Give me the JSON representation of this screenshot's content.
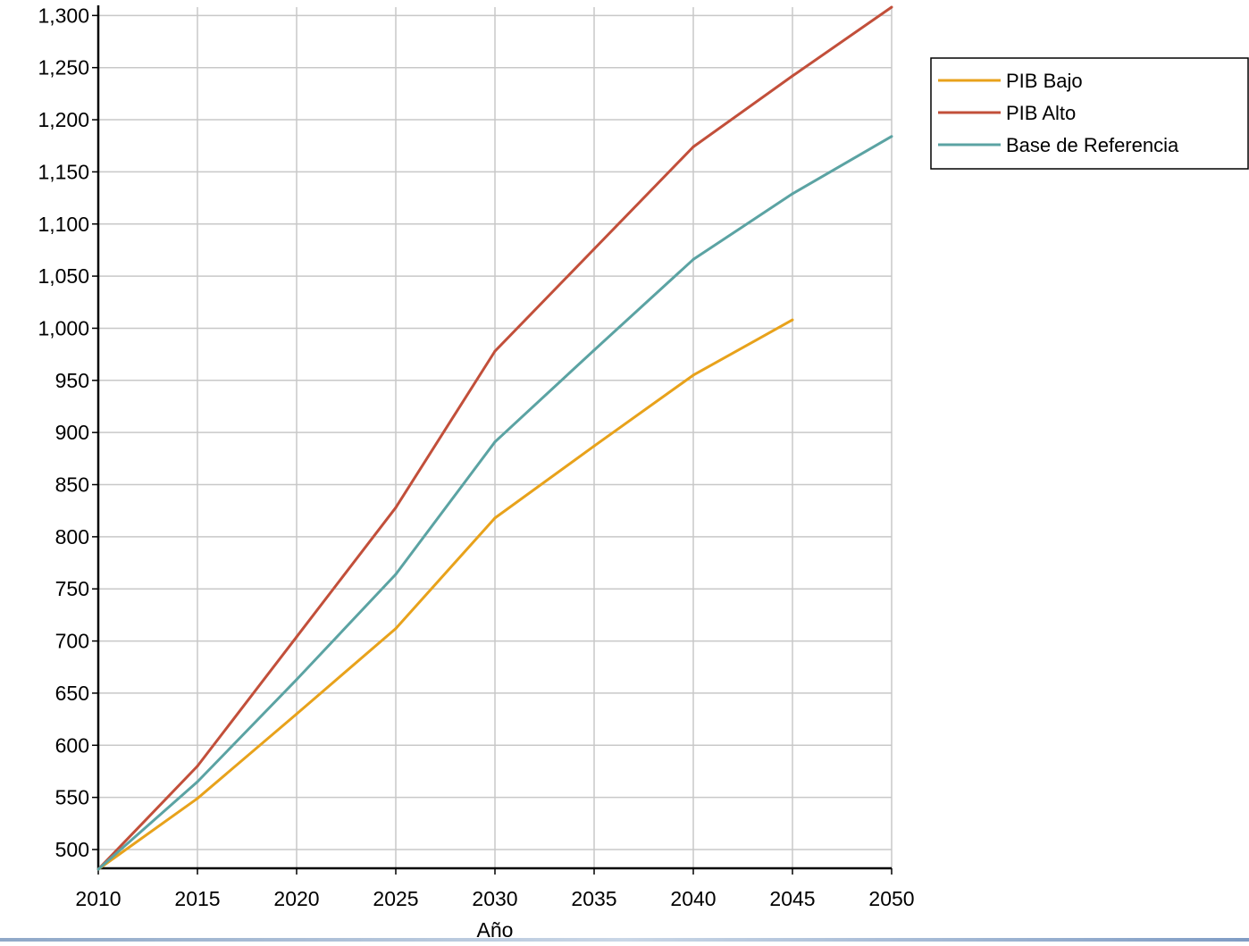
{
  "chart_data": {
    "type": "line",
    "title": "",
    "xlabel": "Año",
    "ylabel": "",
    "x_ticks": [
      "2010",
      "2015",
      "2020",
      "2025",
      "2030",
      "2035",
      "2040",
      "2045",
      "2050"
    ],
    "y_ticks": [
      "500",
      "550",
      "600",
      "650",
      "700",
      "750",
      "800",
      "850",
      "900",
      "950",
      "1,000",
      "1,050",
      "1,100",
      "1,150",
      "1,200",
      "1,250",
      "1,300"
    ],
    "xlim": [
      2010,
      2050
    ],
    "ylim": [
      482,
      1308
    ],
    "grid": true,
    "legend_position": "top-right outside",
    "series": [
      {
        "name": "PIB Bajo",
        "color": "#E8A21B",
        "x": [
          2010,
          2015,
          2020,
          2025,
          2030,
          2035,
          2040,
          2045
        ],
        "values": [
          481,
          549,
          630,
          712,
          818,
          887,
          955,
          1008
        ]
      },
      {
        "name": "PIB Alto",
        "color": "#C24F3A",
        "x": [
          2010,
          2015,
          2020,
          2025,
          2030,
          2035,
          2040,
          2045,
          2050
        ],
        "values": [
          481,
          580,
          704,
          828,
          978,
          1076,
          1174,
          1242,
          1308
        ]
      },
      {
        "name": "Base de Referencia",
        "color": "#5BA3A3",
        "x": [
          2010,
          2015,
          2020,
          2025,
          2030,
          2035,
          2040,
          2045,
          2050
        ],
        "values": [
          481,
          565,
          663,
          764,
          891,
          979,
          1066,
          1129,
          1184
        ]
      }
    ]
  }
}
